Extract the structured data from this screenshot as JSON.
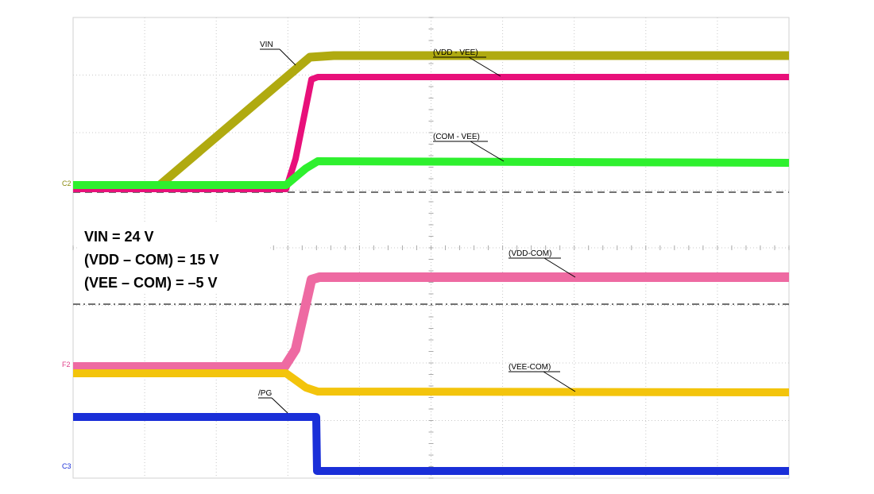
{
  "trace_labels": [
    "VIN",
    "(VDD - VEE)",
    "(COM - VEE)",
    "(VDD-COM)",
    "(VEE-COM)",
    "/PG"
  ],
  "channel_markers": [
    "C2",
    "F2",
    "C3"
  ],
  "annotation": [
    "VIN = 24 V",
    "(VDD – COM) = 15 V",
    "(VEE – COM) = –5 V"
  ]
}
